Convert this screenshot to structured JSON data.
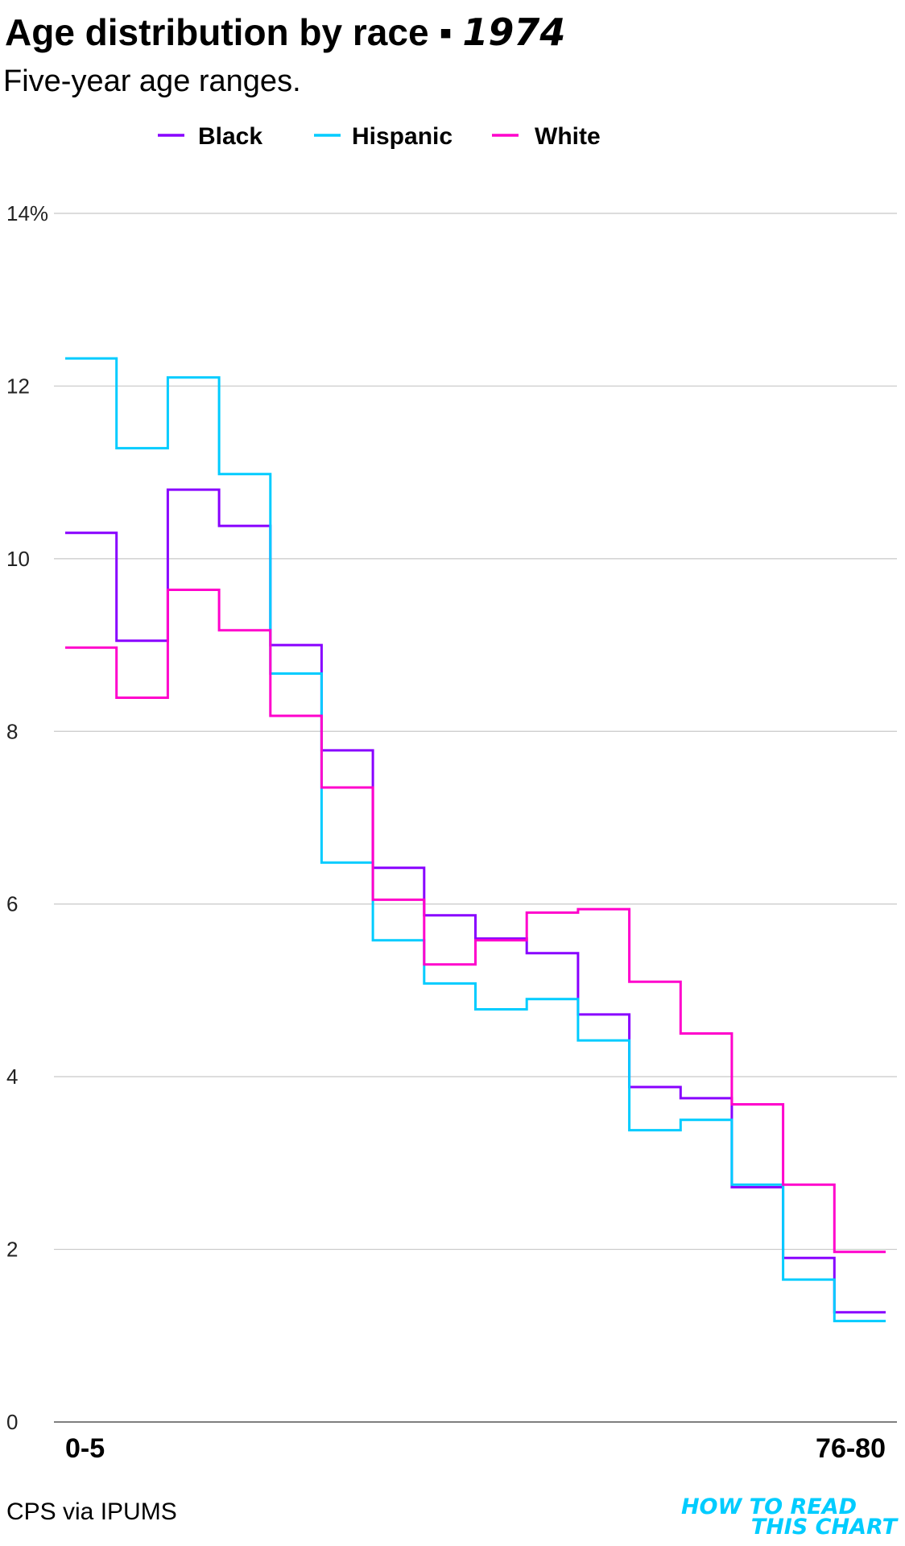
{
  "title": "Age distribution by race",
  "title_separator": "▪",
  "title_year": "1974",
  "subtitle": "Five-year age ranges.",
  "source": "CPS via IPUMS",
  "logo": {
    "line1": "HOW TO READ",
    "line2": "THIS CHART",
    "color": "#00ccff"
  },
  "chart_data": {
    "type": "line",
    "step": true,
    "title": "Age distribution by race • 1974",
    "subtitle": "Five-year age ranges.",
    "xlabel": "",
    "ylabel": "",
    "ylim": [
      0,
      14
    ],
    "yticks": [
      0,
      2,
      4,
      6,
      8,
      10,
      12,
      14
    ],
    "ytick_labels": [
      "0",
      "2",
      "4",
      "6",
      "8",
      "10",
      "12",
      "14%"
    ],
    "x_bins": 16,
    "xtick_labels": {
      "first": "0-5",
      "last": "76-80"
    },
    "grid": true,
    "legend": "top",
    "series": [
      {
        "name": "Black",
        "color": "#8800ff",
        "values": [
          10.3,
          9.05,
          10.8,
          10.38,
          9.0,
          7.78,
          6.42,
          5.87,
          5.6,
          5.43,
          4.72,
          3.88,
          3.75,
          2.72,
          1.9,
          1.27
        ]
      },
      {
        "name": "Hispanic",
        "color": "#00ccff",
        "values": [
          12.32,
          11.28,
          12.1,
          10.98,
          8.67,
          6.48,
          5.58,
          5.08,
          4.78,
          4.9,
          4.42,
          3.38,
          3.5,
          2.75,
          1.65,
          1.17
        ]
      },
      {
        "name": "White",
        "color": "#ff00cc",
        "values": [
          8.97,
          8.39,
          9.64,
          9.17,
          8.18,
          7.35,
          6.05,
          5.3,
          5.58,
          5.9,
          5.94,
          5.1,
          4.5,
          3.68,
          2.75,
          1.97
        ]
      }
    ]
  }
}
